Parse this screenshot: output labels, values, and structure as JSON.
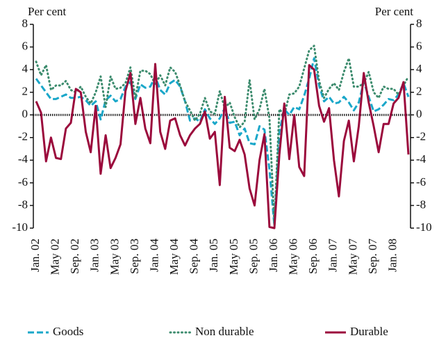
{
  "chart_data": {
    "type": "line",
    "y_label": "Per cent",
    "y2_label": "Per cent",
    "categories": [
      "Jan. 02",
      null,
      null,
      null,
      "May 02",
      null,
      null,
      null,
      "Sep. 02",
      null,
      null,
      null,
      "Jan. 03",
      null,
      null,
      null,
      "May 03",
      null,
      null,
      null,
      "Sep. 03",
      null,
      null,
      null,
      "Jan. 04",
      null,
      null,
      null,
      "May 04",
      null,
      null,
      null,
      "Sep. 04",
      null,
      null,
      null,
      "Jan. 05",
      null,
      null,
      null,
      "May 05",
      null,
      null,
      null,
      "Sep. 05",
      null,
      null,
      null,
      "Jan. 06",
      null,
      null,
      null,
      "May 06",
      null,
      null,
      null,
      "Sep. 06",
      null,
      null,
      null,
      "Jan. 07",
      null,
      null,
      null,
      "May 07",
      null,
      null,
      null,
      "Sep. 07",
      null,
      null,
      null,
      "Jan. 08",
      null,
      null,
      null
    ],
    "series": [
      {
        "name": "Goods",
        "color": "#1aa7c9",
        "style": "dashed",
        "values": [
          3.2,
          2.6,
          2.0,
          1.4,
          1.4,
          1.6,
          1.8,
          1.5,
          1.5,
          1.6,
          1.3,
          0.8,
          1.2,
          -0.4,
          1.3,
          1.7,
          1.2,
          1.4,
          2.5,
          2.9,
          1.4,
          2.7,
          2.4,
          2.5,
          3.4,
          2.2,
          1.8,
          2.8,
          3.1,
          2.5,
          1.2,
          -0.5,
          -0.3,
          -0.6,
          0.5,
          -0.3,
          -0.8,
          -0.3,
          0.6,
          -0.7,
          -0.6,
          -1.8,
          -1.2,
          -2.5,
          -2.6,
          -1.0,
          -1.3,
          -4.8,
          -9.8,
          -1.5,
          0.5,
          0.0,
          0.7,
          0.5,
          1.7,
          3.2,
          5.0,
          2.6,
          1.2,
          1.6,
          1.0,
          1.1,
          1.6,
          1.1,
          0.4,
          1.1,
          2.9,
          1.6,
          0.3,
          0.5,
          0.9,
          1.4,
          1.3,
          1.8,
          2.8,
          1.6
        ]
      },
      {
        "name": "Non durable",
        "color": "#3d8c6e",
        "style": "dotted",
        "values": [
          4.7,
          3.5,
          4.4,
          2.2,
          2.6,
          2.6,
          3.0,
          2.2,
          2.0,
          2.5,
          1.6,
          1.0,
          2.0,
          3.4,
          0.7,
          3.4,
          2.3,
          2.4,
          2.8,
          4.2,
          1.5,
          3.9,
          3.9,
          3.6,
          2.7,
          3.5,
          2.6,
          4.2,
          3.8,
          2.6,
          1.2,
          0.4,
          -0.5,
          0.1,
          1.5,
          0.3,
          0.1,
          2.1,
          0.6,
          1.1,
          -0.2,
          -1.1,
          -0.6,
          3.1,
          -0.4,
          0.5,
          2.3,
          -0.3,
          -9.7,
          0.5,
          0.0,
          1.8,
          1.9,
          2.5,
          4.1,
          5.7,
          6.1,
          3.0,
          1.5,
          2.3,
          2.8,
          2.2,
          3.8,
          5.0,
          2.5,
          2.5,
          2.8,
          3.8,
          2.0,
          1.5,
          2.5,
          2.3,
          2.3,
          1.8,
          2.6,
          3.4
        ]
      },
      {
        "name": "Durable",
        "color": "#9b0a3c",
        "style": "solid",
        "values": [
          1.2,
          0.2,
          -4.1,
          -2.0,
          -3.8,
          -3.9,
          -1.2,
          -0.7,
          2.3,
          2.0,
          -1.5,
          -3.3,
          0.8,
          -5.2,
          -1.8,
          -4.7,
          -3.8,
          -2.6,
          2.1,
          3.7,
          -0.8,
          1.5,
          -1.2,
          -2.5,
          4.5,
          -1.5,
          -3.0,
          -0.5,
          -0.3,
          -1.8,
          -2.7,
          -1.8,
          -1.2,
          -0.8,
          0.3,
          -2.1,
          -1.5,
          -6.2,
          1.6,
          -2.9,
          -3.2,
          -2.2,
          -3.5,
          -6.5,
          -8.0,
          -4.0,
          -1.7,
          -9.9,
          -10.0,
          -3.5,
          1.0,
          -3.9,
          0.0,
          -4.6,
          -5.4,
          4.4,
          4.0,
          0.8,
          -0.6,
          0.6,
          -4.0,
          -7.2,
          -2.3,
          -0.5,
          -4.1,
          -1.0,
          3.7,
          1.1,
          -1.0,
          -3.3,
          -0.8,
          -0.8,
          1.0,
          1.5,
          2.9,
          -3.5
        ]
      }
    ],
    "ylim": [
      -10,
      8
    ],
    "yticks": [
      -10,
      -8,
      -6,
      -4,
      -2,
      0,
      2,
      4,
      6,
      8
    ],
    "y2lim": [
      -10,
      8
    ],
    "y2ticks": [
      -10,
      -8,
      -6,
      -4,
      -2,
      0,
      2,
      4,
      6,
      8
    ]
  }
}
